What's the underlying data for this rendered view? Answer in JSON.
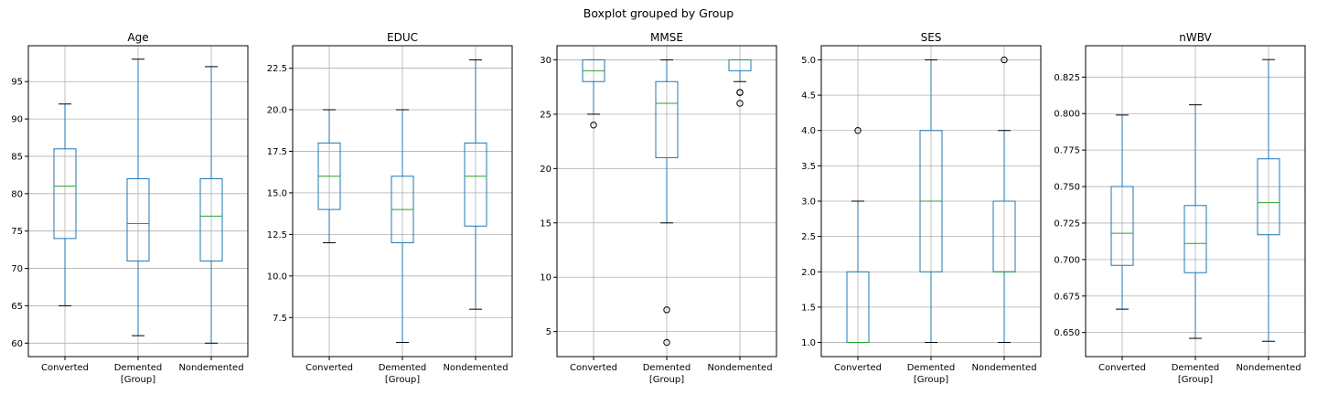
{
  "figure": {
    "suptitle": "Boxplot grouped by Group",
    "xlabel": "[Group]"
  },
  "colors": {
    "box": "#1f77b4",
    "median": "#2ca02c",
    "cap": "#000000",
    "grid": "#b0b0b0"
  },
  "chart_data": [
    {
      "type": "box",
      "title": "Age",
      "categories": [
        "Converted",
        "Demented",
        "Nondemented"
      ],
      "xlabel": "[Group]",
      "ylim": [
        58.2,
        99.8
      ],
      "ticks": [
        60,
        65,
        70,
        75,
        80,
        85,
        90,
        95
      ],
      "tick_labels": [
        "60",
        "65",
        "70",
        "75",
        "80",
        "85",
        "90",
        "95"
      ],
      "boxes": [
        {
          "whislo": 65,
          "q1": 74,
          "med": 81,
          "q3": 86,
          "whishi": 92,
          "fliers": []
        },
        {
          "whislo": 61,
          "q1": 71,
          "med": 76,
          "q3": 82,
          "whishi": 98,
          "fliers": []
        },
        {
          "whislo": 60,
          "q1": 71,
          "med": 77,
          "q3": 82,
          "whishi": 97,
          "fliers": []
        }
      ]
    },
    {
      "type": "box",
      "title": "EDUC",
      "categories": [
        "Converted",
        "Demented",
        "Nondemented"
      ],
      "xlabel": "[Group]",
      "ylim": [
        5.15,
        23.85
      ],
      "ticks": [
        7.5,
        10.0,
        12.5,
        15.0,
        17.5,
        20.0,
        22.5
      ],
      "tick_labels": [
        "7.5",
        "10.0",
        "12.5",
        "15.0",
        "17.5",
        "20.0",
        "22.5"
      ],
      "boxes": [
        {
          "whislo": 12,
          "q1": 14,
          "med": 16,
          "q3": 18,
          "whishi": 20,
          "fliers": []
        },
        {
          "whislo": 6,
          "q1": 12,
          "med": 14,
          "q3": 16,
          "whishi": 20,
          "fliers": []
        },
        {
          "whislo": 8,
          "q1": 13,
          "med": 16,
          "q3": 18,
          "whishi": 23,
          "fliers": []
        }
      ]
    },
    {
      "type": "box",
      "title": "MMSE",
      "categories": [
        "Converted",
        "Demented",
        "Nondemented"
      ],
      "xlabel": "[Group]",
      "ylim": [
        2.7,
        31.3
      ],
      "ticks": [
        5,
        10,
        15,
        20,
        25,
        30
      ],
      "tick_labels": [
        "5",
        "10",
        "15",
        "20",
        "25",
        "30"
      ],
      "boxes": [
        {
          "whislo": 25,
          "q1": 28,
          "med": 29,
          "q3": 30,
          "whishi": 30,
          "fliers": [
            24
          ]
        },
        {
          "whislo": 15,
          "q1": 21,
          "med": 26,
          "q3": 28,
          "whishi": 30,
          "fliers": [
            7,
            4
          ]
        },
        {
          "whislo": 28,
          "q1": 29,
          "med": 30,
          "q3": 30,
          "whishi": 30,
          "fliers": [
            27,
            27,
            26
          ]
        }
      ]
    },
    {
      "type": "box",
      "title": "SES",
      "categories": [
        "Converted",
        "Demented",
        "Nondemented"
      ],
      "xlabel": "[Group]",
      "ylim": [
        0.8,
        5.2
      ],
      "ticks": [
        1.0,
        1.5,
        2.0,
        2.5,
        3.0,
        3.5,
        4.0,
        4.5,
        5.0
      ],
      "tick_labels": [
        "1.0",
        "1.5",
        "2.0",
        "2.5",
        "3.0",
        "3.5",
        "4.0",
        "4.5",
        "5.0"
      ],
      "boxes": [
        {
          "whislo": 1,
          "q1": 1,
          "med": 1,
          "q3": 2,
          "whishi": 3,
          "fliers": [
            4
          ]
        },
        {
          "whislo": 1,
          "q1": 2,
          "med": 3,
          "q3": 4,
          "whishi": 5,
          "fliers": []
        },
        {
          "whislo": 1,
          "q1": 2,
          "med": 2,
          "q3": 3,
          "whishi": 4,
          "fliers": [
            5
          ]
        }
      ]
    },
    {
      "type": "box",
      "title": "nWBV",
      "categories": [
        "Converted",
        "Demented",
        "Nondemented"
      ],
      "xlabel": "[Group]",
      "ylim": [
        0.6335,
        0.8465
      ],
      "ticks": [
        0.65,
        0.675,
        0.7,
        0.725,
        0.75,
        0.775,
        0.8,
        0.825
      ],
      "tick_labels": [
        "0.650",
        "0.675",
        "0.700",
        "0.725",
        "0.750",
        "0.775",
        "0.800",
        "0.825"
      ],
      "boxes": [
        {
          "whislo": 0.666,
          "q1": 0.696,
          "med": 0.718,
          "q3": 0.75,
          "whishi": 0.799,
          "fliers": []
        },
        {
          "whislo": 0.646,
          "q1": 0.691,
          "med": 0.711,
          "q3": 0.737,
          "whishi": 0.806,
          "fliers": []
        },
        {
          "whislo": 0.644,
          "q1": 0.717,
          "med": 0.739,
          "q3": 0.769,
          "whishi": 0.837,
          "fliers": []
        }
      ]
    }
  ]
}
